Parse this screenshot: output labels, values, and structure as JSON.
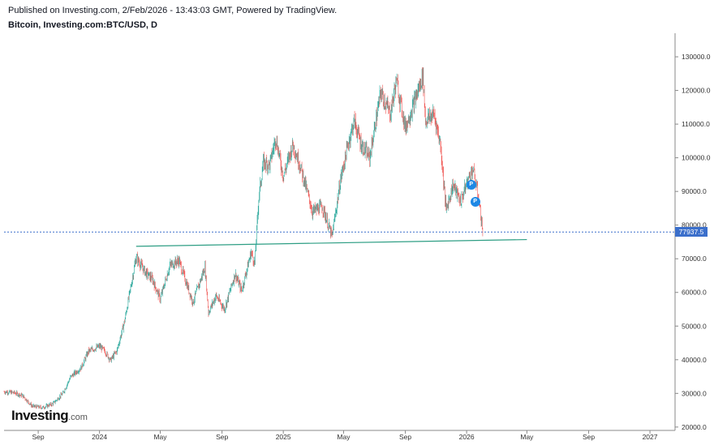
{
  "header": {
    "published": "Published on Investing.com, 2/Feb/2026 - 13:43:03 GMT, Powered by TradingView.",
    "symbol": "Bitcoin, Investing.com:BTC/USD, D"
  },
  "logo": {
    "name": "Investing",
    "suffix": ".com"
  },
  "price_label": "77937.5",
  "markers": [
    {
      "label": "P",
      "date": "2026-01-10",
      "price": 92000
    },
    {
      "label": "P",
      "date": "2026-01-18",
      "price": 87000
    }
  ],
  "colors": {
    "up": "#26a69a",
    "down": "#ef5350",
    "line": "#2e9e84",
    "price_line": "#3b6fcb",
    "marker": "#1e88e5"
  },
  "chart_data": {
    "type": "line",
    "title": "",
    "xlabel": "",
    "ylabel": "",
    "x_tick_labels": [
      "Sep",
      "2024",
      "May",
      "Sep",
      "2025",
      "May",
      "Sep",
      "2026",
      "May",
      "Sep",
      "2027"
    ],
    "y_tick_labels": [
      "20000.0",
      "30000.0",
      "40000.0",
      "50000.0",
      "60000.0",
      "70000.0",
      "80000.0",
      "90000.0",
      "100000.0",
      "110000.0",
      "120000.0",
      "130000.0"
    ],
    "ylim": [
      19000,
      137000
    ],
    "xlim": [
      "2023-06-25",
      "2027-02-20"
    ],
    "grid": false,
    "series": [
      {
        "x": [
          "2023-06-25",
          "2023-07-15",
          "2023-08-01",
          "2023-08-20",
          "2023-09-10",
          "2023-10-01",
          "2023-10-20",
          "2023-11-05",
          "2023-11-25",
          "2023-12-10",
          "2024-01-01",
          "2024-01-12",
          "2024-01-23",
          "2024-02-05",
          "2024-02-20",
          "2024-03-05",
          "2024-03-14",
          "2024-04-01",
          "2024-04-15",
          "2024-05-01",
          "2024-05-20",
          "2024-06-07",
          "2024-06-25",
          "2024-07-05",
          "2024-07-29",
          "2024-08-05",
          "2024-08-20",
          "2024-09-06",
          "2024-09-27",
          "2024-10-10",
          "2024-10-29",
          "2024-11-05",
          "2024-11-13",
          "2024-11-22",
          "2024-12-05",
          "2024-12-17",
          "2025-01-01",
          "2025-01-20",
          "2025-02-05",
          "2025-02-28",
          "2025-03-20",
          "2025-04-08",
          "2025-04-25",
          "2025-05-10",
          "2025-05-22",
          "2025-06-05",
          "2025-06-22",
          "2025-07-14",
          "2025-08-02",
          "2025-08-14",
          "2025-09-01",
          "2025-09-20",
          "2025-10-06",
          "2025-10-11",
          "2025-10-28",
          "2025-11-10",
          "2025-11-21",
          "2025-12-05",
          "2025-12-20",
          "2026-01-05",
          "2026-01-14",
          "2026-01-25",
          "2026-02-02"
        ],
        "y": [
          30500,
          30200,
          29300,
          26200,
          25800,
          27000,
          30000,
          35000,
          37500,
          42500,
          44000,
          42500,
          39800,
          42800,
          51500,
          63000,
          70500,
          66000,
          64000,
          58000,
          68000,
          69500,
          61500,
          57000,
          67500,
          54000,
          59000,
          55000,
          65500,
          60500,
          72000,
          68500,
          88000,
          98500,
          98000,
          106000,
          94500,
          104000,
          97000,
          84000,
          85500,
          76500,
          93500,
          104000,
          111000,
          104000,
          100000,
          119500,
          113000,
          123000,
          109000,
          117000,
          124500,
          111000,
          113000,
          104000,
          84500,
          92000,
          87000,
          94000,
          96500,
          88000,
          77937.5
        ]
      }
    ],
    "support_line": {
      "x": [
        "2024-03-14",
        "2026-05-01"
      ],
      "y": [
        73700,
        75700
      ]
    },
    "last_price": 77937.5
  }
}
